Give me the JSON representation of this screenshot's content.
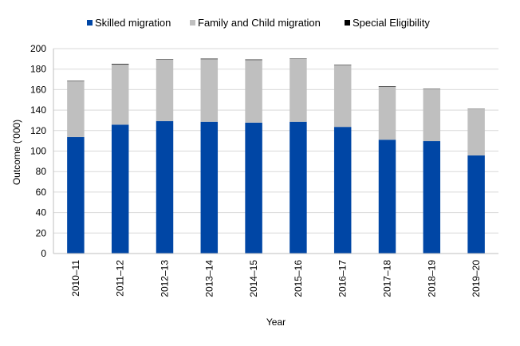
{
  "chart_data": {
    "type": "bar",
    "stacked": true,
    "categories": [
      "2010–11",
      "2011–12",
      "2012–13",
      "2013–14",
      "2014–15",
      "2015–16",
      "2016–17",
      "2017–18",
      "2018–19",
      "2019–20"
    ],
    "series": [
      {
        "name": "Skilled migration",
        "color": "#0046a5",
        "values": [
          113.7,
          125.8,
          129.3,
          128.6,
          127.8,
          128.6,
          123.6,
          111.1,
          109.7,
          95.8
        ]
      },
      {
        "name": "Family and Child migration",
        "color": "#bfbfbf",
        "values": [
          54.5,
          58.6,
          60.2,
          61.1,
          61.1,
          61.5,
          60.2,
          51.9,
          50.9,
          45.4
        ]
      },
      {
        "name": "Special Eligibility",
        "color": "#000000",
        "values": [
          0.4,
          0.6,
          0.3,
          0.5,
          0.5,
          0.3,
          0.4,
          0.4,
          0.3,
          0.2
        ]
      }
    ],
    "xlabel": "Year",
    "ylabel": "Outcome ('000)",
    "ylim": [
      0,
      200
    ],
    "yticks": [
      0,
      20,
      40,
      60,
      80,
      100,
      120,
      140,
      160,
      180,
      200
    ],
    "grid": true,
    "legend_position": "top"
  }
}
